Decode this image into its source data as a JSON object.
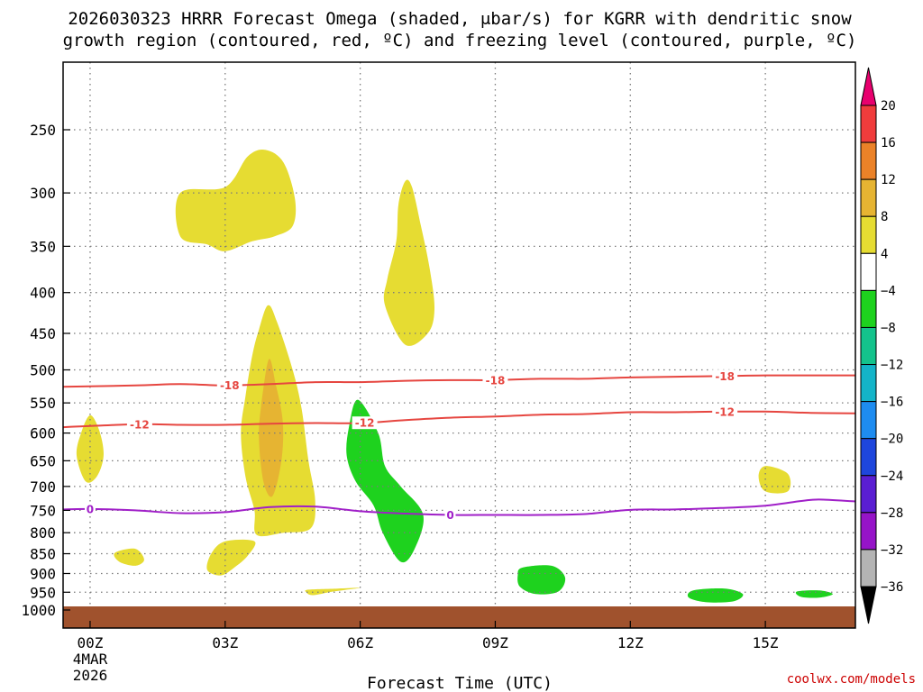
{
  "chart_data": {
    "type": "heatmap",
    "title_line1": "2026030323 HRRR Forecast Omega (shaded, μbar/s) for KGRR with dendritic snow",
    "title_line2": "growth region (contoured, red, ºC) and freezing level (contoured, purple, ºC)",
    "xlabel": "Forecast Time (UTC)",
    "credit": "coolwx.com/models",
    "x_range_hours": [
      -0.6,
      17.0
    ],
    "x_ticks": [
      {
        "hour": 0,
        "label": "00Z",
        "sub1": "4MAR",
        "sub2": "2026"
      },
      {
        "hour": 3,
        "label": "03Z",
        "sub1": "",
        "sub2": ""
      },
      {
        "hour": 6,
        "label": "06Z",
        "sub1": "",
        "sub2": ""
      },
      {
        "hour": 9,
        "label": "09Z",
        "sub1": "",
        "sub2": ""
      },
      {
        "hour": 12,
        "label": "12Z",
        "sub1": "",
        "sub2": ""
      },
      {
        "hour": 15,
        "label": "15Z",
        "sub1": "",
        "sub2": ""
      }
    ],
    "y_ticks": [
      {
        "label": "250",
        "level": 250
      },
      {
        "label": "300",
        "level": 300
      },
      {
        "label": "350",
        "level": 350
      },
      {
        "label": "400",
        "level": 400
      },
      {
        "label": "450",
        "level": 450
      },
      {
        "label": "500",
        "level": 500
      },
      {
        "label": "550",
        "level": 550
      },
      {
        "label": "600",
        "level": 600
      },
      {
        "label": "650",
        "level": 650
      },
      {
        "label": "700",
        "level": 700
      },
      {
        "label": "750",
        "level": 750
      },
      {
        "label": "800",
        "level": 800
      },
      {
        "label": "850",
        "level": 850
      },
      {
        "label": "900",
        "level": 900
      },
      {
        "label": "950",
        "level": 950
      },
      {
        "label": "1000",
        "level": 1000
      }
    ],
    "terrain_color": "#a0522d",
    "omega_regions": [
      {
        "omega": 4,
        "color": "#e6dc32",
        "points": [
          [
            2.0,
            300
          ],
          [
            3.0,
            295
          ],
          [
            3.5,
            270
          ],
          [
            3.9,
            265
          ],
          [
            4.3,
            275
          ],
          [
            4.55,
            305
          ],
          [
            4.5,
            330
          ],
          [
            4.1,
            340
          ],
          [
            3.6,
            345
          ],
          [
            3.0,
            355
          ],
          [
            2.6,
            348
          ],
          [
            2.0,
            340
          ]
        ]
      },
      {
        "omega": 4,
        "color": "#e6dc32",
        "points": [
          [
            7.0,
            290
          ],
          [
            7.15,
            295
          ],
          [
            7.35,
            330
          ],
          [
            7.55,
            375
          ],
          [
            7.65,
            420
          ],
          [
            7.5,
            450
          ],
          [
            7.0,
            465
          ],
          [
            6.55,
            415
          ],
          [
            6.6,
            385
          ],
          [
            6.8,
            345
          ],
          [
            6.85,
            310
          ]
        ]
      },
      {
        "omega": 4,
        "color": "#e6dc32",
        "points": [
          [
            3.95,
            415
          ],
          [
            4.15,
            435
          ],
          [
            4.5,
            500
          ],
          [
            4.7,
            560
          ],
          [
            4.85,
            650
          ],
          [
            5.0,
            730
          ],
          [
            4.9,
            790
          ],
          [
            4.3,
            800
          ],
          [
            3.7,
            805
          ],
          [
            3.65,
            750
          ],
          [
            3.45,
            680
          ],
          [
            3.35,
            600
          ],
          [
            3.45,
            540
          ],
          [
            3.6,
            480
          ],
          [
            3.75,
            445
          ]
        ]
      },
      {
        "omega": 8,
        "color": "#e6b432",
        "points": [
          [
            3.97,
            485
          ],
          [
            4.12,
            520
          ],
          [
            4.28,
            580
          ],
          [
            4.25,
            650
          ],
          [
            4.05,
            720
          ],
          [
            3.85,
            690
          ],
          [
            3.75,
            610
          ],
          [
            3.8,
            555
          ]
        ]
      },
      {
        "omega": 4,
        "color": "#e6dc32",
        "points": [
          [
            0.0,
            570
          ],
          [
            0.2,
            595
          ],
          [
            0.3,
            640
          ],
          [
            0.15,
            680
          ],
          [
            -0.1,
            690
          ],
          [
            -0.3,
            640
          ],
          [
            -0.2,
            600
          ]
        ]
      },
      {
        "omega": 4,
        "color": "#e6dc32",
        "points": [
          [
            0.55,
            848
          ],
          [
            1.0,
            838
          ],
          [
            1.2,
            865
          ],
          [
            1.0,
            880
          ],
          [
            0.65,
            870
          ]
        ]
      },
      {
        "omega": 4,
        "color": "#e6dc32",
        "points": [
          [
            3.0,
            820
          ],
          [
            3.65,
            820
          ],
          [
            3.5,
            855
          ],
          [
            3.2,
            885
          ],
          [
            2.9,
            905
          ],
          [
            2.6,
            890
          ],
          [
            2.7,
            848
          ]
        ]
      },
      {
        "omega": 4,
        "color": "#e6dc32",
        "points": [
          [
            4.85,
            943
          ],
          [
            5.5,
            940
          ],
          [
            6.0,
            938
          ],
          [
            5.4,
            948
          ],
          [
            4.95,
            958
          ],
          [
            4.8,
            950
          ]
        ]
      },
      {
        "omega": 4,
        "color": "#e6dc32",
        "points": [
          [
            15.0,
            660
          ],
          [
            15.5,
            675
          ],
          [
            15.5,
            710
          ],
          [
            15.0,
            710
          ],
          [
            14.85,
            680
          ]
        ]
      },
      {
        "omega": -4,
        "color": "#1ed21e",
        "points": [
          [
            5.95,
            545
          ],
          [
            6.4,
            600
          ],
          [
            6.55,
            660
          ],
          [
            6.9,
            700
          ],
          [
            7.4,
            760
          ],
          [
            7.2,
            840
          ],
          [
            6.9,
            870
          ],
          [
            6.5,
            800
          ],
          [
            6.3,
            740
          ],
          [
            5.9,
            690
          ],
          [
            5.7,
            640
          ],
          [
            5.75,
            590
          ]
        ]
      },
      {
        "omega": -4,
        "color": "#1ed21e",
        "points": [
          [
            9.6,
            885
          ],
          [
            10.25,
            880
          ],
          [
            10.55,
            910
          ],
          [
            10.4,
            948
          ],
          [
            9.9,
            955
          ],
          [
            9.55,
            935
          ],
          [
            9.5,
            905
          ]
        ]
      },
      {
        "omega": -4,
        "color": "#1ed21e",
        "points": [
          [
            13.4,
            945
          ],
          [
            14.1,
            940
          ],
          [
            14.5,
            955
          ],
          [
            14.3,
            975
          ],
          [
            13.7,
            978
          ],
          [
            13.3,
            965
          ]
        ]
      },
      {
        "omega": -4,
        "color": "#1ed21e",
        "points": [
          [
            15.7,
            948
          ],
          [
            16.2,
            945
          ],
          [
            16.5,
            955
          ],
          [
            16.2,
            965
          ],
          [
            15.8,
            963
          ]
        ]
      }
    ],
    "contours": [
      {
        "name": "dgz-minus-18",
        "value": -18,
        "label": "-18",
        "color": "#e64640",
        "points": [
          [
            -0.6,
            525
          ],
          [
            1,
            523
          ],
          [
            2,
            521
          ],
          [
            3,
            523
          ],
          [
            4,
            521
          ],
          [
            5,
            518
          ],
          [
            6,
            518
          ],
          [
            7,
            516
          ],
          [
            8,
            515
          ],
          [
            9,
            515
          ],
          [
            10,
            513
          ],
          [
            11,
            513
          ],
          [
            12,
            511
          ],
          [
            13,
            510
          ],
          [
            14,
            509
          ],
          [
            15,
            508
          ],
          [
            16,
            508
          ],
          [
            17,
            508
          ]
        ],
        "labels_at": [
          3.1,
          9.0,
          14.1
        ]
      },
      {
        "name": "dgz-minus-12",
        "value": -12,
        "label": "-12",
        "color": "#e64640",
        "points": [
          [
            -0.6,
            590
          ],
          [
            1,
            585
          ],
          [
            2,
            586
          ],
          [
            3,
            586
          ],
          [
            4,
            584
          ],
          [
            5,
            583
          ],
          [
            6,
            583
          ],
          [
            7,
            578
          ],
          [
            8,
            574
          ],
          [
            9,
            572
          ],
          [
            10,
            569
          ],
          [
            11,
            568
          ],
          [
            12,
            565
          ],
          [
            13,
            565
          ],
          [
            14,
            564
          ],
          [
            15,
            564
          ],
          [
            16,
            566
          ],
          [
            17,
            567
          ]
        ],
        "labels_at": [
          1.1,
          6.1,
          14.1
        ]
      },
      {
        "name": "freezing-level-0",
        "value": 0,
        "label": "0",
        "color": "#a020c8",
        "points": [
          [
            -0.6,
            748
          ],
          [
            0,
            747
          ],
          [
            1,
            750
          ],
          [
            2,
            756
          ],
          [
            3,
            754
          ],
          [
            4,
            743
          ],
          [
            5,
            742
          ],
          [
            6,
            752
          ],
          [
            7,
            757
          ],
          [
            8,
            760
          ],
          [
            9,
            760
          ],
          [
            10,
            760
          ],
          [
            11,
            758
          ],
          [
            12,
            749
          ],
          [
            13,
            748
          ],
          [
            14,
            745
          ],
          [
            15,
            740
          ],
          [
            15.8,
            730
          ],
          [
            16.2,
            727
          ],
          [
            17,
            731
          ]
        ],
        "labels_at": [
          0.0,
          8.0
        ]
      }
    ],
    "colorbar": {
      "bands": [
        {
          "color": "#e8006e"
        },
        {
          "color": "#f03c3c"
        },
        {
          "color": "#eb8228"
        },
        {
          "color": "#e6b432"
        },
        {
          "color": "#e6dc32"
        },
        {
          "color": "#ffffff"
        },
        {
          "color": "#1ed21e"
        },
        {
          "color": "#14c38c"
        },
        {
          "color": "#14b4c8"
        },
        {
          "color": "#1e8cf0"
        },
        {
          "color": "#1e46dc"
        },
        {
          "color": "#5a1ed2"
        },
        {
          "color": "#9614c8"
        },
        {
          "color": "#b4b4b4"
        },
        {
          "color": "#000000"
        }
      ],
      "labels": [
        "20",
        "16",
        "12",
        "8",
        "4",
        "−4",
        "−8",
        "−12",
        "−16",
        "−20",
        "−24",
        "−28",
        "−32",
        "−36"
      ]
    }
  }
}
